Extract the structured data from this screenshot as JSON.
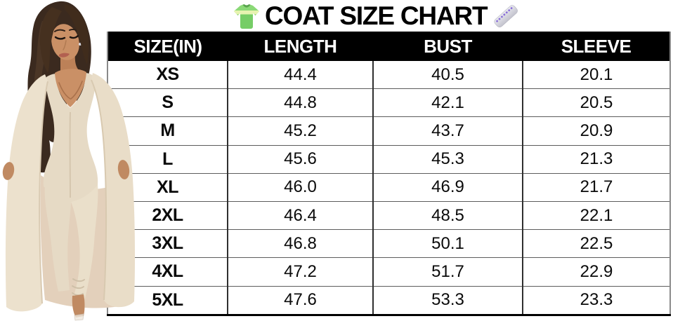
{
  "title": {
    "text": "COAT SIZE CHART",
    "left_icon": "tshirt-icon",
    "right_icon": "ruler-icon"
  },
  "table": {
    "headers": [
      "SIZE(IN)",
      "LENGTH",
      "BUST",
      "SLEEVE"
    ],
    "rows": [
      {
        "size": "XS",
        "length": "44.4",
        "bust": "40.5",
        "sleeve": "20.1"
      },
      {
        "size": "S",
        "length": "44.8",
        "bust": "42.1",
        "sleeve": "20.5"
      },
      {
        "size": "M",
        "length": "45.2",
        "bust": "43.7",
        "sleeve": "20.9"
      },
      {
        "size": "L",
        "length": "45.6",
        "bust": "45.3",
        "sleeve": "21.3"
      },
      {
        "size": "XL",
        "length": "46.0",
        "bust": "46.9",
        "sleeve": "21.7"
      },
      {
        "size": "2XL",
        "length": "46.4",
        "bust": "48.5",
        "sleeve": "22.1"
      },
      {
        "size": "3XL",
        "length": "46.8",
        "bust": "50.1",
        "sleeve": "22.5"
      },
      {
        "size": "4XL",
        "length": "47.2",
        "bust": "51.7",
        "sleeve": "22.9"
      },
      {
        "size": "5XL",
        "length": "47.6",
        "bust": "53.3",
        "sleeve": "23.3"
      }
    ]
  },
  "chart_data": {
    "type": "table",
    "title": "COAT SIZE CHART",
    "units": "inches",
    "columns": [
      "SIZE(IN)",
      "LENGTH",
      "BUST",
      "SLEEVE"
    ],
    "rows": [
      [
        "XS",
        44.4,
        40.5,
        20.1
      ],
      [
        "S",
        44.8,
        42.1,
        20.5
      ],
      [
        "M",
        45.2,
        43.7,
        20.9
      ],
      [
        "L",
        45.6,
        45.3,
        21.3
      ],
      [
        "XL",
        46.0,
        46.9,
        21.7
      ],
      [
        "2XL",
        46.4,
        48.5,
        22.1
      ],
      [
        "3XL",
        46.8,
        50.1,
        22.5
      ],
      [
        "4XL",
        47.2,
        51.7,
        22.9
      ],
      [
        "5XL",
        47.6,
        53.3,
        23.3
      ]
    ]
  },
  "figure": {
    "description": "model wearing cream long cardigan coat with matching jumpsuit"
  },
  "colors": {
    "header_bg": "#000000",
    "header_text": "#ffffff",
    "body_bg": "#ffffff",
    "body_text": "#0a0a0a",
    "grid_line": "#5c5c5c",
    "column_line": "#2f2f2f",
    "coat_cream": "#ece1cd",
    "jumpsuit_cream": "#e6dac5",
    "skin_tone": "#c79067",
    "hair_brown": "#3b2a1f",
    "tshirt_green": "#7fd36e",
    "ruler_silver": "#d6d6de",
    "ruler_tick_purple": "#8a6fd8"
  }
}
